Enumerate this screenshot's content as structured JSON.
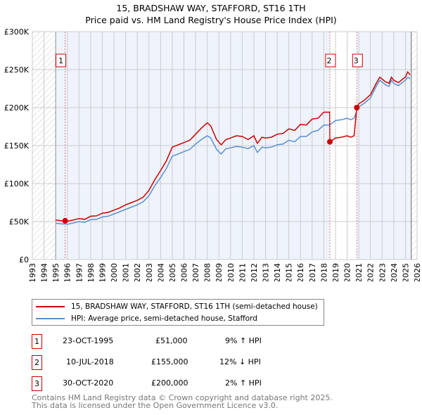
{
  "title_line1": "15, BRADSHAW WAY, STAFFORD, ST16 1TH",
  "title_line2": "Price paid vs. HM Land Registry's House Price Index (HPI)",
  "colors": {
    "price": "#cc0000",
    "hpi": "#5b8fd0",
    "shade": "#eef3fc"
  },
  "chart_data": {
    "type": "line",
    "xlim": [
      1993,
      2026
    ],
    "ylim": [
      0,
      300000
    ],
    "yticks": [
      {
        "v": 0,
        "label": "£0"
      },
      {
        "v": 50000,
        "label": "£50K"
      },
      {
        "v": 100000,
        "label": "£100K"
      },
      {
        "v": 150000,
        "label": "£150K"
      },
      {
        "v": 200000,
        "label": "£200K"
      },
      {
        "v": 250000,
        "label": "£250K"
      },
      {
        "v": 300000,
        "label": "£300K"
      }
    ],
    "xticks": [
      "1993",
      "1994",
      "1995",
      "1996",
      "1997",
      "1998",
      "1999",
      "2000",
      "2001",
      "2002",
      "2003",
      "2004",
      "2005",
      "2006",
      "2007",
      "2008",
      "2009",
      "2010",
      "2011",
      "2012",
      "2013",
      "2014",
      "2015",
      "2016",
      "2017",
      "2018",
      "2019",
      "2020",
      "2021",
      "2022",
      "2023",
      "2024",
      "2025",
      "2026"
    ],
    "hatched_before": 1995.0,
    "hatched_after": 2025.5,
    "grid": true,
    "series": [
      {
        "name": "15, BRADSHAW WAY, STAFFORD, ST16 1TH (semi-detached house)",
        "color": "#cc0000",
        "points": [
          [
            1995,
            52
          ],
          [
            1995.5,
            51
          ],
          [
            1996,
            50.5
          ],
          [
            1996.5,
            52
          ],
          [
            1997,
            54
          ],
          [
            1997.5,
            53
          ],
          [
            1998,
            57
          ],
          [
            1998.5,
            57.5
          ],
          [
            1999,
            61
          ],
          [
            1999.5,
            62
          ],
          [
            2000,
            65
          ],
          [
            2000.5,
            68
          ],
          [
            2001,
            72
          ],
          [
            2001.5,
            75
          ],
          [
            2002,
            78
          ],
          [
            2002.5,
            82
          ],
          [
            2003,
            91
          ],
          [
            2003.5,
            105
          ],
          [
            2004,
            117
          ],
          [
            2004.5,
            130
          ],
          [
            2005,
            148
          ],
          [
            2005.5,
            151
          ],
          [
            2006,
            154
          ],
          [
            2006.5,
            157
          ],
          [
            2007,
            165
          ],
          [
            2007.5,
            173
          ],
          [
            2008,
            180
          ],
          [
            2008.3,
            176
          ],
          [
            2008.8,
            158
          ],
          [
            2009.2,
            151
          ],
          [
            2009.6,
            158
          ],
          [
            2010,
            160
          ],
          [
            2010.5,
            163
          ],
          [
            2011,
            162
          ],
          [
            2011.5,
            158
          ],
          [
            2012,
            163
          ],
          [
            2012.3,
            153
          ],
          [
            2012.7,
            161
          ],
          [
            2013,
            160
          ],
          [
            2013.5,
            161
          ],
          [
            2014,
            165
          ],
          [
            2014.5,
            166
          ],
          [
            2015,
            172
          ],
          [
            2015.5,
            170
          ],
          [
            2016,
            178
          ],
          [
            2016.5,
            177
          ],
          [
            2017,
            185
          ],
          [
            2017.5,
            186
          ],
          [
            2018,
            194
          ],
          [
            2018.5,
            194
          ],
          [
            2018.52,
            155
          ],
          [
            2019,
            160
          ],
          [
            2019.5,
            161
          ],
          [
            2020,
            163
          ],
          [
            2020.3,
            161
          ],
          [
            2020.6,
            163
          ],
          [
            2020.83,
            200
          ],
          [
            2021,
            205
          ],
          [
            2021.5,
            210
          ],
          [
            2022,
            217
          ],
          [
            2022.5,
            232
          ],
          [
            2022.8,
            240
          ],
          [
            2023.3,
            234
          ],
          [
            2023.6,
            232
          ],
          [
            2023.8,
            240
          ],
          [
            2024,
            236
          ],
          [
            2024.4,
            233
          ],
          [
            2024.8,
            238
          ],
          [
            2025,
            240
          ],
          [
            2025.2,
            247
          ],
          [
            2025.4,
            243
          ]
        ]
      },
      {
        "name": "HPI: Average price, semi-detached house, Stafford",
        "color": "#5b8fd0",
        "points": [
          [
            1995,
            48
          ],
          [
            1995.5,
            47
          ],
          [
            1996,
            46.5
          ],
          [
            1996.5,
            48
          ],
          [
            1997,
            50
          ],
          [
            1997.5,
            49
          ],
          [
            1998,
            52.5
          ],
          [
            1998.5,
            53
          ],
          [
            1999,
            56
          ],
          [
            1999.5,
            57
          ],
          [
            2000,
            60
          ],
          [
            2000.5,
            63
          ],
          [
            2001,
            66
          ],
          [
            2001.5,
            69
          ],
          [
            2002,
            72
          ],
          [
            2002.5,
            76
          ],
          [
            2003,
            84
          ],
          [
            2003.5,
            97
          ],
          [
            2004,
            108
          ],
          [
            2004.5,
            120
          ],
          [
            2005,
            136
          ],
          [
            2005.5,
            139
          ],
          [
            2006,
            142
          ],
          [
            2006.5,
            145
          ],
          [
            2007,
            152
          ],
          [
            2007.5,
            158
          ],
          [
            2008,
            163
          ],
          [
            2008.3,
            160
          ],
          [
            2008.8,
            145
          ],
          [
            2009.2,
            139
          ],
          [
            2009.6,
            146
          ],
          [
            2010,
            147
          ],
          [
            2010.5,
            149
          ],
          [
            2011,
            148
          ],
          [
            2011.5,
            146
          ],
          [
            2012,
            150
          ],
          [
            2012.3,
            141
          ],
          [
            2012.7,
            148
          ],
          [
            2013,
            147
          ],
          [
            2013.5,
            148
          ],
          [
            2014,
            151
          ],
          [
            2014.5,
            152
          ],
          [
            2015,
            157
          ],
          [
            2015.5,
            155
          ],
          [
            2016,
            162
          ],
          [
            2016.5,
            162
          ],
          [
            2017,
            168
          ],
          [
            2017.5,
            170
          ],
          [
            2018,
            177
          ],
          [
            2018.5,
            177
          ],
          [
            2019,
            183
          ],
          [
            2019.5,
            184
          ],
          [
            2020,
            186
          ],
          [
            2020.3,
            184
          ],
          [
            2020.6,
            186
          ],
          [
            2020.83,
            196
          ],
          [
            2021,
            201
          ],
          [
            2021.5,
            206
          ],
          [
            2022,
            213
          ],
          [
            2022.5,
            228
          ],
          [
            2022.8,
            236
          ],
          [
            2023.3,
            230
          ],
          [
            2023.6,
            228
          ],
          [
            2023.8,
            236
          ],
          [
            2024,
            232
          ],
          [
            2024.4,
            229
          ],
          [
            2024.8,
            234
          ],
          [
            2025,
            236
          ],
          [
            2025.2,
            240
          ],
          [
            2025.4,
            238
          ]
        ]
      }
    ],
    "sales": [
      {
        "label": "1",
        "x": 1995.81,
        "value": 51000
      },
      {
        "label": "2",
        "x": 2018.52,
        "value": 155000
      },
      {
        "label": "3",
        "x": 2020.83,
        "value": 200000
      }
    ]
  },
  "legend": {
    "price_label": "15, BRADSHAW WAY, STAFFORD, ST16 1TH (semi-detached house)",
    "hpi_label": "HPI: Average price, semi-detached house, Stafford"
  },
  "transactions": [
    {
      "num": "1",
      "date": "23-OCT-1995",
      "price": "£51,000",
      "hpi": "9% ↑ HPI"
    },
    {
      "num": "2",
      "date": "10-JUL-2018",
      "price": "£155,000",
      "hpi": "12% ↓ HPI"
    },
    {
      "num": "3",
      "date": "30-OCT-2020",
      "price": "£200,000",
      "hpi": "2% ↑ HPI"
    }
  ],
  "footer_line1": "Contains HM Land Registry data © Crown copyright and database right 2025.",
  "footer_line2": "This data is licensed under the Open Government Licence v3.0."
}
